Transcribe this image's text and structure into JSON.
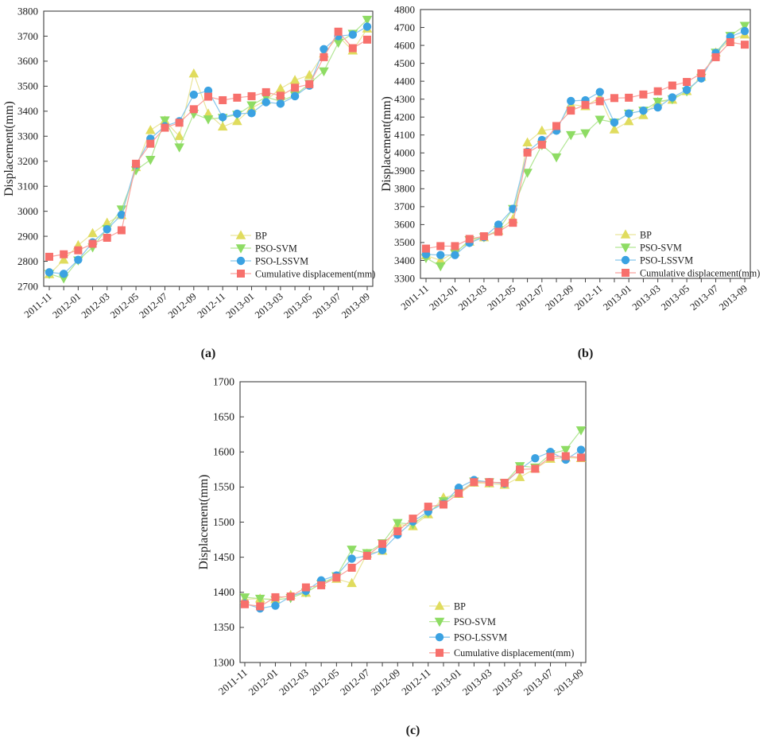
{
  "page": {
    "background": "#ffffff"
  },
  "chart_data": [
    {
      "id": "a",
      "caption": "(a)",
      "type": "line",
      "title": "",
      "xlabel": "",
      "ylabel": "Displacement(mm)",
      "ylim": [
        2700,
        3800
      ],
      "ytick_step": 100,
      "grid": false,
      "legend_position": "inside-bottom-right",
      "xtick_label_every": 2,
      "categories": [
        "2011-11",
        "2011-12",
        "2012-01",
        "2012-02",
        "2012-03",
        "2012-04",
        "2012-05",
        "2012-06",
        "2012-07",
        "2012-08",
        "2012-09",
        "2012-10",
        "2012-11",
        "2012-12",
        "2013-01",
        "2013-02",
        "2013-03",
        "2013-04",
        "2013-05",
        "2013-06",
        "2013-07",
        "2013-08",
        "2013-09"
      ],
      "series": [
        {
          "name": "BP",
          "marker": "triangle-up",
          "color": "#e0dc5e",
          "line_color": "#eae59a",
          "values": [
            2748,
            2806,
            2864,
            2912,
            2954,
            2984,
            3176,
            3324,
            3362,
            3300,
            3550,
            3390,
            3338,
            3360,
            3412,
            3444,
            3490,
            3524,
            3544,
            3630,
            3700,
            3642,
            3730
          ]
        },
        {
          "name": "PSO-SVM",
          "marker": "triangle-down",
          "color": "#8edc64",
          "line_color": "#b2e694",
          "values": [
            2750,
            2732,
            2804,
            2856,
            2930,
            3008,
            3164,
            3206,
            3364,
            3256,
            3390,
            3368,
            3374,
            3386,
            3424,
            3456,
            3440,
            3464,
            3510,
            3560,
            3674,
            3710,
            3766
          ]
        },
        {
          "name": "PSO-LSSVM",
          "marker": "circle",
          "color": "#3ba2e2",
          "line_color": "#86c6ec",
          "values": [
            2756,
            2750,
            2806,
            2876,
            2928,
            2986,
            3186,
            3290,
            3340,
            3360,
            3466,
            3482,
            3376,
            3390,
            3392,
            3436,
            3430,
            3460,
            3502,
            3648,
            3700,
            3706,
            3738
          ]
        },
        {
          "name": "Cumulative displacement(mm)",
          "marker": "square",
          "color": "#f7706c",
          "line_color": "#f9a29d",
          "values": [
            2818,
            2828,
            2844,
            2870,
            2894,
            2924,
            3190,
            3270,
            3334,
            3354,
            3408,
            3458,
            3444,
            3454,
            3460,
            3476,
            3462,
            3494,
            3508,
            3616,
            3718,
            3652,
            3686
          ]
        }
      ]
    },
    {
      "id": "b",
      "caption": "(b)",
      "type": "line",
      "title": "",
      "xlabel": "",
      "ylabel": "Displacement(mm)",
      "ylim": [
        3300,
        4800
      ],
      "ytick_step": 100,
      "grid": false,
      "legend_position": "inside-bottom-right",
      "xtick_label_every": 2,
      "categories": [
        "2011-11",
        "2011-12",
        "2012-01",
        "2012-02",
        "2012-03",
        "2012-04",
        "2012-05",
        "2012-06",
        "2012-07",
        "2012-08",
        "2012-09",
        "2012-10",
        "2012-11",
        "2012-12",
        "2013-01",
        "2013-02",
        "2013-03",
        "2013-04",
        "2013-05",
        "2013-06",
        "2013-07",
        "2013-08",
        "2013-09"
      ],
      "series": [
        {
          "name": "BP",
          "marker": "triangle-up",
          "color": "#e0dc5e",
          "line_color": "#eae59a",
          "values": [
            3428,
            3400,
            3446,
            3504,
            3528,
            3566,
            3630,
            4058,
            4124,
            4136,
            4270,
            4260,
            4310,
            4130,
            4176,
            4210,
            4284,
            4296,
            4344,
            4424,
            4560,
            4630,
            4660
          ]
        },
        {
          "name": "PSO-SVM",
          "marker": "triangle-down",
          "color": "#8edc64",
          "line_color": "#b2e694",
          "values": [
            3414,
            3368,
            3440,
            3514,
            3530,
            3570,
            3688,
            3890,
            4044,
            3976,
            4100,
            4110,
            4186,
            4170,
            4220,
            4236,
            4286,
            4300,
            4344,
            4420,
            4560,
            4654,
            4710
          ]
        },
        {
          "name": "PSO-LSSVM",
          "marker": "circle",
          "color": "#3ba2e2",
          "line_color": "#86c6ec",
          "values": [
            3434,
            3430,
            3430,
            3498,
            3530,
            3600,
            3688,
            4006,
            4072,
            4124,
            4290,
            4294,
            4340,
            4170,
            4220,
            4236,
            4254,
            4310,
            4352,
            4416,
            4558,
            4648,
            4680
          ]
        },
        {
          "name": "Cumulative displacement(mm)",
          "marker": "square",
          "color": "#f7706c",
          "line_color": "#f9a29d",
          "values": [
            3466,
            3480,
            3480,
            3520,
            3535,
            3560,
            3610,
            4002,
            4046,
            4150,
            4236,
            4268,
            4288,
            4306,
            4308,
            4326,
            4344,
            4376,
            4396,
            4444,
            4534,
            4618,
            4604
          ]
        }
      ]
    },
    {
      "id": "c",
      "caption": "(c)",
      "type": "line",
      "title": "",
      "xlabel": "",
      "ylabel": "Displacement(mm)",
      "ylim": [
        1300,
        1700
      ],
      "ytick_step": 50,
      "grid": false,
      "legend_position": "inside-bottom-right",
      "xtick_label_every": 2,
      "categories": [
        "2011-11",
        "2011-12",
        "2012-01",
        "2012-02",
        "2012-03",
        "2012-04",
        "2012-05",
        "2012-06",
        "2012-07",
        "2012-08",
        "2012-09",
        "2012-10",
        "2012-11",
        "2012-12",
        "2013-01",
        "2013-02",
        "2013-03",
        "2013-04",
        "2013-05",
        "2013-06",
        "2013-07",
        "2013-08",
        "2013-09"
      ],
      "series": [
        {
          "name": "BP",
          "marker": "triangle-up",
          "color": "#e0dc5e",
          "line_color": "#eae59a",
          "values": [
            1390,
            1391,
            1390,
            1396,
            1399,
            1414,
            1419,
            1413,
            1455,
            1459,
            1497,
            1494,
            1511,
            1535,
            1540,
            1556,
            1555,
            1553,
            1564,
            1576,
            1590,
            1592,
            1591
          ]
        },
        {
          "name": "PSO-SVM",
          "marker": "triangle-down",
          "color": "#8edc64",
          "line_color": "#b2e694",
          "values": [
            1393,
            1391,
            1389,
            1392,
            1400,
            1412,
            1423,
            1461,
            1456,
            1470,
            1499,
            1497,
            1513,
            1530,
            1542,
            1558,
            1557,
            1556,
            1580,
            1578,
            1597,
            1603,
            1631
          ]
        },
        {
          "name": "PSO-LSSVM",
          "marker": "circle",
          "color": "#3ba2e2",
          "line_color": "#86c6ec",
          "values": [
            1384,
            1377,
            1381,
            1394,
            1402,
            1417,
            1424,
            1448,
            1452,
            1460,
            1482,
            1501,
            1515,
            1526,
            1549,
            1560,
            1557,
            1555,
            1575,
            1591,
            1600,
            1589,
            1603
          ]
        },
        {
          "name": "Cumulative displacement(mm)",
          "marker": "square",
          "color": "#f7706c",
          "line_color": "#f9a29d",
          "values": [
            1383,
            1380,
            1393,
            1394,
            1407,
            1410,
            1421,
            1435,
            1452,
            1469,
            1487,
            1505,
            1522,
            1525,
            1541,
            1557,
            1557,
            1556,
            1575,
            1576,
            1593,
            1594,
            1592
          ]
        }
      ]
    }
  ]
}
